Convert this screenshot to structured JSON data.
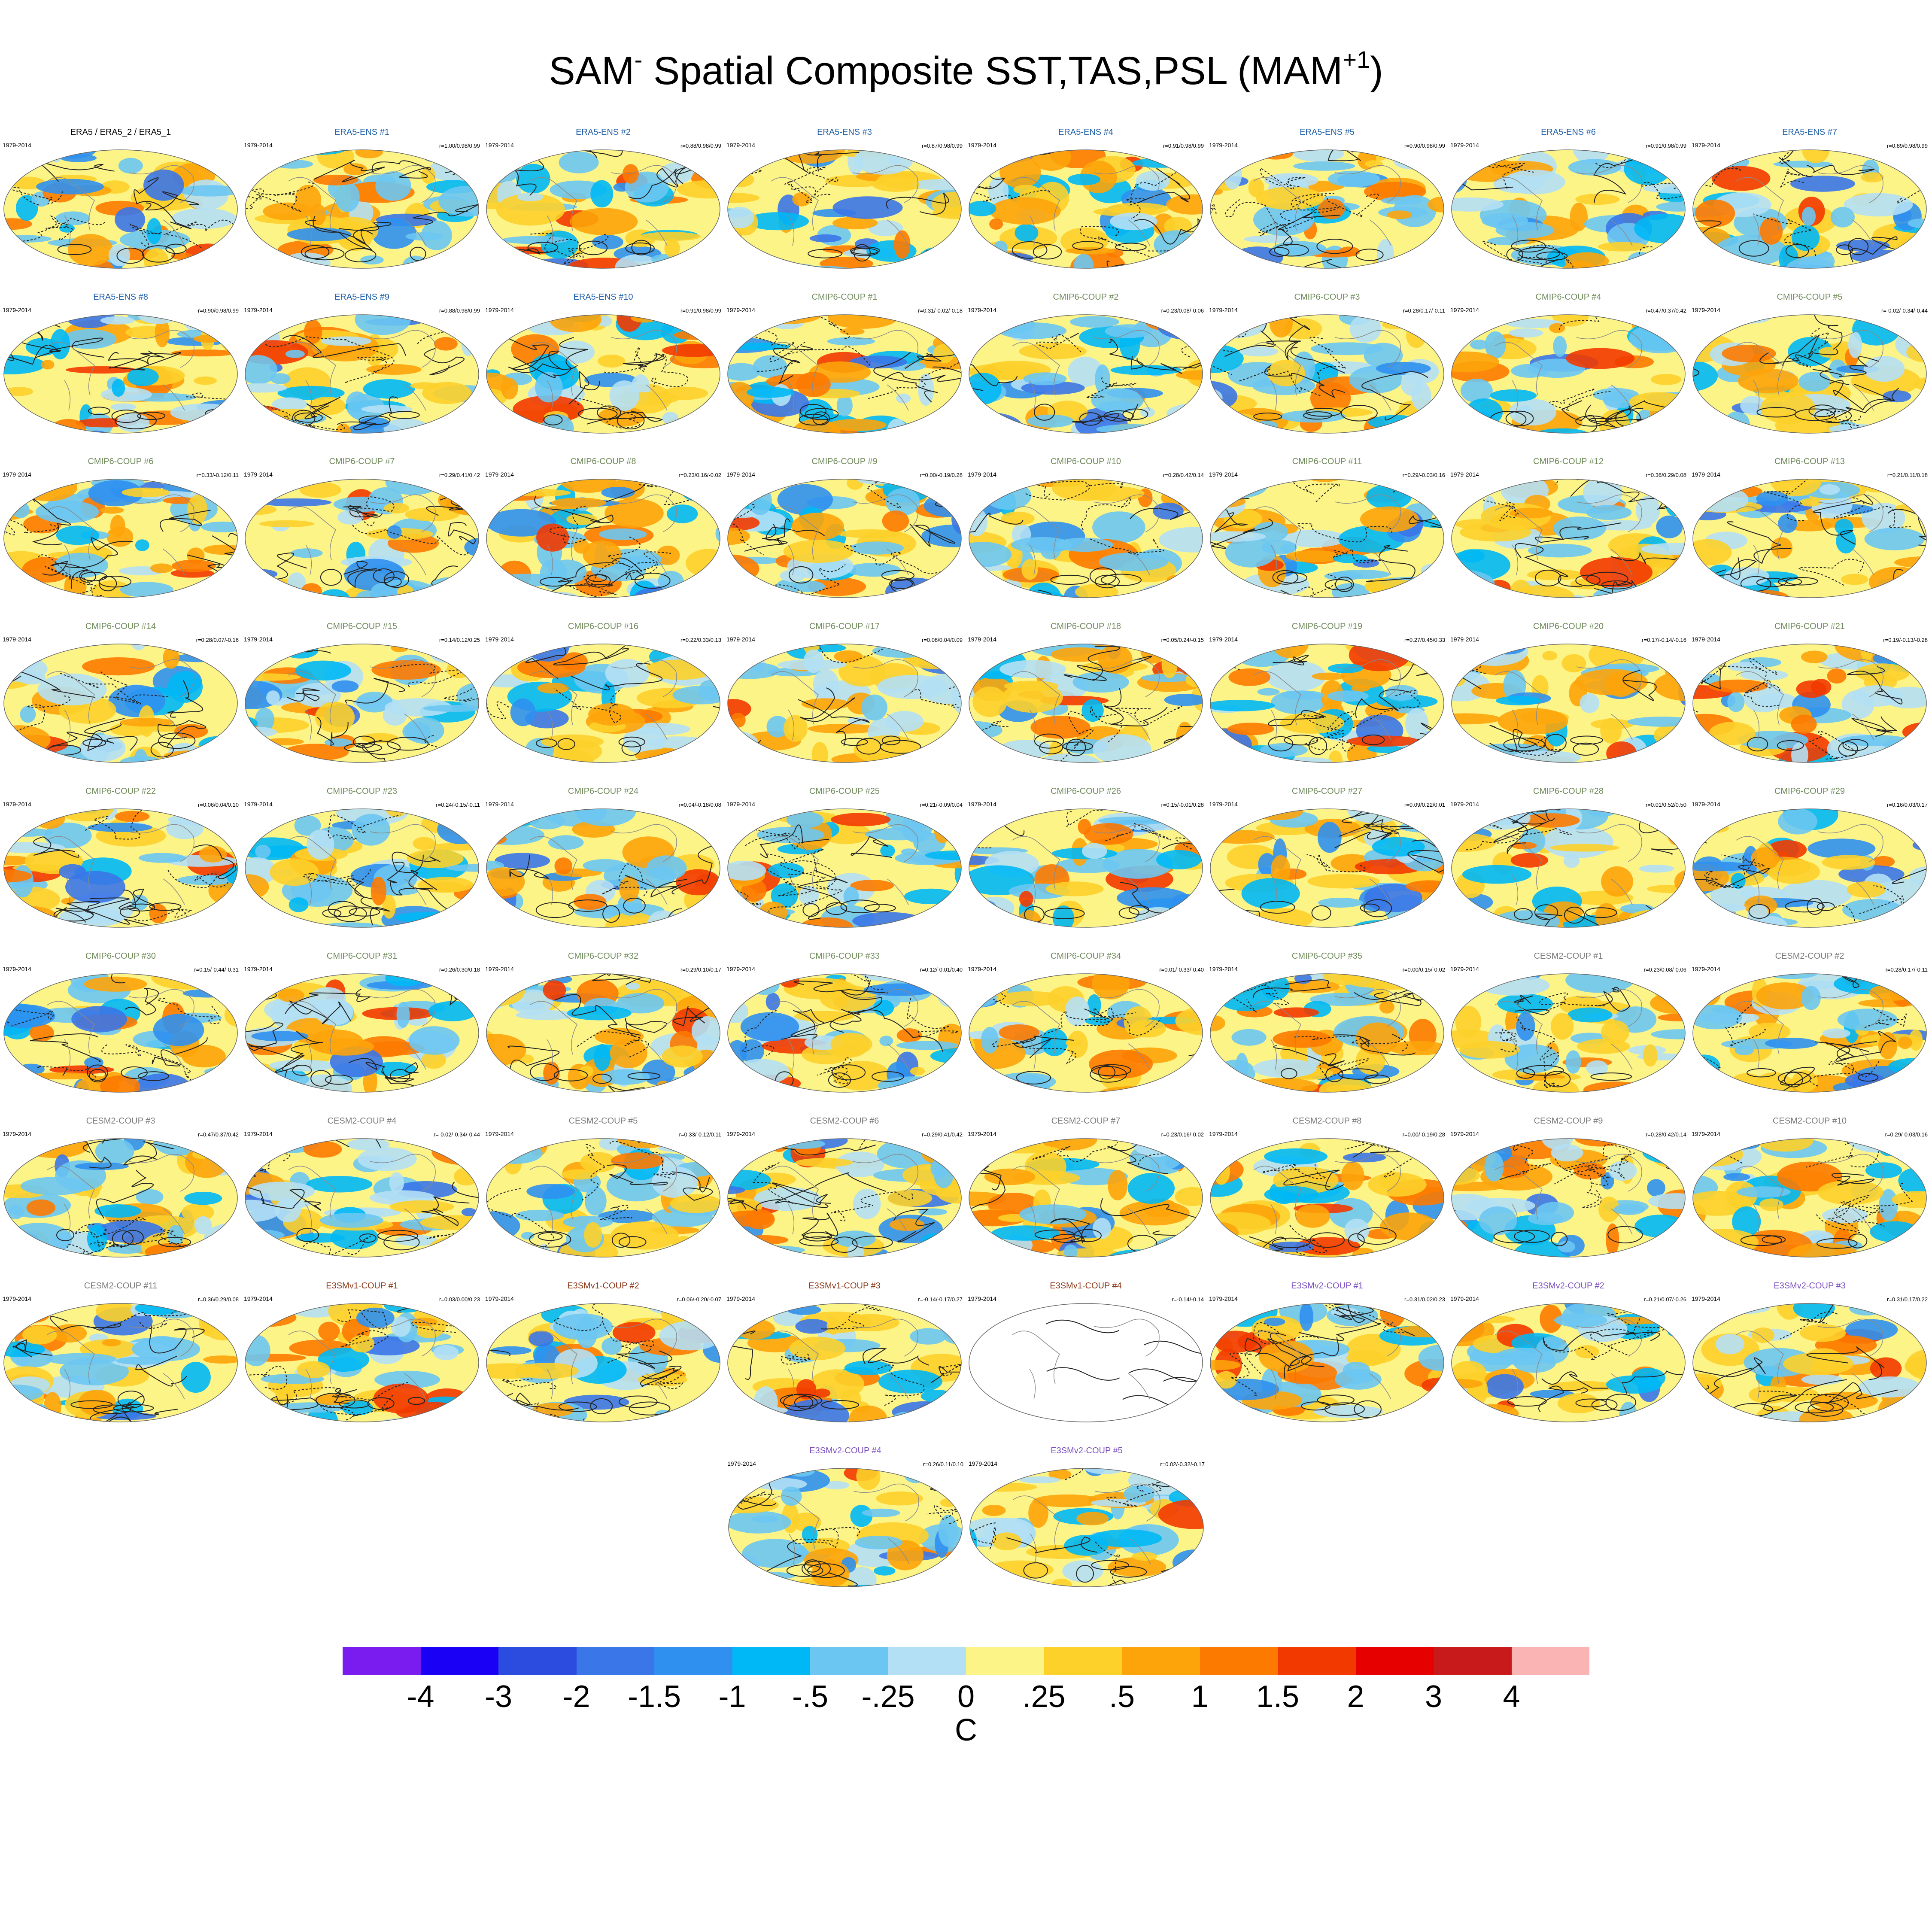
{
  "figure": {
    "title_base": "SAM",
    "title_sup": "-",
    "title_rest": " Spatial Composite SST,TAS,PSL (MAM",
    "title_sup2": "+1",
    "title_end": ")"
  },
  "panels": [
    {
      "title": "ERA5 / ERA5_2 / ERA5_1",
      "years": "1979-2014",
      "stats": "",
      "group": "obs",
      "blank": false
    },
    {
      "title": "ERA5-ENS   #1",
      "years": "1979-2014",
      "stats": "r=1.00/0.98/0.99",
      "group": "era5ens",
      "blank": false
    },
    {
      "title": "ERA5-ENS   #2",
      "years": "1979-2014",
      "stats": "r=0.88/0.98/0.99",
      "group": "era5ens",
      "blank": false
    },
    {
      "title": "ERA5-ENS   #3",
      "years": "1979-2014",
      "stats": "r=0.87/0.98/0.99",
      "group": "era5ens",
      "blank": false
    },
    {
      "title": "ERA5-ENS   #4",
      "years": "1979-2014",
      "stats": "r=0.91/0.98/0.99",
      "group": "era5ens",
      "blank": false
    },
    {
      "title": "ERA5-ENS   #5",
      "years": "1979-2014",
      "stats": "r=0.90/0.98/0.99",
      "group": "era5ens",
      "blank": false
    },
    {
      "title": "ERA5-ENS   #6",
      "years": "1979-2014",
      "stats": "r=0.91/0.98/0.99",
      "group": "era5ens",
      "blank": false
    },
    {
      "title": "ERA5-ENS   #7",
      "years": "1979-2014",
      "stats": "r=0.89/0.98/0.99",
      "group": "era5ens",
      "blank": false
    },
    {
      "title": "ERA5-ENS   #8",
      "years": "1979-2014",
      "stats": "r=0.90/0.98/0.99",
      "group": "era5ens",
      "blank": false
    },
    {
      "title": "ERA5-ENS   #9",
      "years": "1979-2014",
      "stats": "r=0.88/0.98/0.99",
      "group": "era5ens",
      "blank": false
    },
    {
      "title": "ERA5-ENS   #10",
      "years": "1979-2014",
      "stats": "r=0.91/0.98/0.99",
      "group": "era5ens",
      "blank": false
    },
    {
      "title": "CMIP6-COUP   #1",
      "years": "1979-2014",
      "stats": "r=0.31/-0.02/-0.18",
      "group": "cmip6",
      "blank": false
    },
    {
      "title": "CMIP6-COUP   #2",
      "years": "1979-2014",
      "stats": "r=0.23/0.08/-0.06",
      "group": "cmip6",
      "blank": false
    },
    {
      "title": "CMIP6-COUP   #3",
      "years": "1979-2014",
      "stats": "r=0.28/0.17/-0.11",
      "group": "cmip6",
      "blank": false
    },
    {
      "title": "CMIP6-COUP   #4",
      "years": "1979-2014",
      "stats": "r=0.47/0.37/0.42",
      "group": "cmip6",
      "blank": false
    },
    {
      "title": "CMIP6-COUP   #5",
      "years": "1979-2014",
      "stats": "r=-0.02/-0.34/-0.44",
      "group": "cmip6",
      "blank": false
    },
    {
      "title": "CMIP6-COUP   #6",
      "years": "1979-2014",
      "stats": "r=0.33/-0.12/0.11",
      "group": "cmip6",
      "blank": false
    },
    {
      "title": "CMIP6-COUP   #7",
      "years": "1979-2014",
      "stats": "r=0.29/0.41/0.42",
      "group": "cmip6",
      "blank": false
    },
    {
      "title": "CMIP6-COUP   #8",
      "years": "1979-2014",
      "stats": "r=0.23/0.16/-0.02",
      "group": "cmip6",
      "blank": false
    },
    {
      "title": "CMIP6-COUP   #9",
      "years": "1979-2014",
      "stats": "r=0.00/-0.19/0.28",
      "group": "cmip6",
      "blank": false
    },
    {
      "title": "CMIP6-COUP   #10",
      "years": "1979-2014",
      "stats": "r=0.28/0.42/0.14",
      "group": "cmip6",
      "blank": false
    },
    {
      "title": "CMIP6-COUP   #11",
      "years": "1979-2014",
      "stats": "r=0.29/-0.03/0.16",
      "group": "cmip6",
      "blank": false
    },
    {
      "title": "CMIP6-COUP   #12",
      "years": "1979-2014",
      "stats": "r=0.36/0.29/0.08",
      "group": "cmip6",
      "blank": false
    },
    {
      "title": "CMIP6-COUP   #13",
      "years": "1979-2014",
      "stats": "r=0.21/0.11/0.18",
      "group": "cmip6",
      "blank": false
    },
    {
      "title": "CMIP6-COUP   #14",
      "years": "1979-2014",
      "stats": "r=0.28/0.07/-0.16",
      "group": "cmip6",
      "blank": false
    },
    {
      "title": "CMIP6-COUP   #15",
      "years": "1979-2014",
      "stats": "r=0.14/0.12/0.25",
      "group": "cmip6",
      "blank": false
    },
    {
      "title": "CMIP6-COUP   #16",
      "years": "1979-2014",
      "stats": "r=0.22/0.33/0.13",
      "group": "cmip6",
      "blank": false
    },
    {
      "title": "CMIP6-COUP   #17",
      "years": "1979-2014",
      "stats": "r=0.08/0.04/0.09",
      "group": "cmip6",
      "blank": false
    },
    {
      "title": "CMIP6-COUP   #18",
      "years": "1979-2014",
      "stats": "r=0.05/0.24/-0.15",
      "group": "cmip6",
      "blank": false
    },
    {
      "title": "CMIP6-COUP   #19",
      "years": "1979-2014",
      "stats": "r=0.27/0.45/0.33",
      "group": "cmip6",
      "blank": false
    },
    {
      "title": "CMIP6-COUP   #20",
      "years": "1979-2014",
      "stats": "r=0.17/-0.14/-0.16",
      "group": "cmip6",
      "blank": false
    },
    {
      "title": "CMIP6-COUP   #21",
      "years": "1979-2014",
      "stats": "r=0.19/-0.13/-0.28",
      "group": "cmip6",
      "blank": false
    },
    {
      "title": "CMIP6-COUP   #22",
      "years": "1979-2014",
      "stats": "r=0.06/0.04/0.10",
      "group": "cmip6",
      "blank": false
    },
    {
      "title": "CMIP6-COUP   #23",
      "years": "1979-2014",
      "stats": "r=0.24/-0.15/-0.11",
      "group": "cmip6",
      "blank": false
    },
    {
      "title": "CMIP6-COUP   #24",
      "years": "1979-2014",
      "stats": "r=0.04/-0.18/0.08",
      "group": "cmip6",
      "blank": false
    },
    {
      "title": "CMIP6-COUP   #25",
      "years": "1979-2014",
      "stats": "r=0.21/-0.09/0.04",
      "group": "cmip6",
      "blank": false
    },
    {
      "title": "CMIP6-COUP   #26",
      "years": "1979-2014",
      "stats": "r=0.15/-0.01/0.28",
      "group": "cmip6",
      "blank": false
    },
    {
      "title": "CMIP6-COUP   #27",
      "years": "1979-2014",
      "stats": "r=0.09/0.22/0.01",
      "group": "cmip6",
      "blank": false
    },
    {
      "title": "CMIP6-COUP   #28",
      "years": "1979-2014",
      "stats": "r=0.01/0.52/0.50",
      "group": "cmip6",
      "blank": false
    },
    {
      "title": "CMIP6-COUP   #29",
      "years": "1979-2014",
      "stats": "r=0.16/0.03/0.17",
      "group": "cmip6",
      "blank": false
    },
    {
      "title": "CMIP6-COUP   #30",
      "years": "1979-2014",
      "stats": "r=0.15/-0.44/-0.31",
      "group": "cmip6",
      "blank": false
    },
    {
      "title": "CMIP6-COUP   #31",
      "years": "1979-2014",
      "stats": "r=0.26/0.30/0.18",
      "group": "cmip6",
      "blank": false
    },
    {
      "title": "CMIP6-COUP   #32",
      "years": "1979-2014",
      "stats": "r=0.29/0.10/0.17",
      "group": "cmip6",
      "blank": false
    },
    {
      "title": "CMIP6-COUP   #33",
      "years": "1979-2014",
      "stats": "r=0.12/-0.01/0.40",
      "group": "cmip6",
      "blank": false
    },
    {
      "title": "CMIP6-COUP   #34",
      "years": "1979-2014",
      "stats": "r=0.01/-0.33/-0.40",
      "group": "cmip6",
      "blank": false
    },
    {
      "title": "CMIP6-COUP   #35",
      "years": "1979-2014",
      "stats": "r=0.00/0.15/-0.02",
      "group": "cmip6",
      "blank": false
    },
    {
      "title": "CESM2-COUP   #1",
      "years": "1979-2014",
      "stats": "r=0.23/0.08/-0.06",
      "group": "cesm2",
      "blank": false
    },
    {
      "title": "CESM2-COUP   #2",
      "years": "1979-2014",
      "stats": "r=0.28/0.17/-0.11",
      "group": "cesm2",
      "blank": false
    },
    {
      "title": "CESM2-COUP   #3",
      "years": "1979-2014",
      "stats": "r=0.47/0.37/0.42",
      "group": "cesm2",
      "blank": false
    },
    {
      "title": "CESM2-COUP   #4",
      "years": "1979-2014",
      "stats": "r=-0.02/-0.34/-0.44",
      "group": "cesm2",
      "blank": false
    },
    {
      "title": "CESM2-COUP   #5",
      "years": "1979-2014",
      "stats": "r=0.33/-0.12/0.11",
      "group": "cesm2",
      "blank": false
    },
    {
      "title": "CESM2-COUP   #6",
      "years": "1979-2014",
      "stats": "r=0.29/0.41/0.42",
      "group": "cesm2",
      "blank": false
    },
    {
      "title": "CESM2-COUP   #7",
      "years": "1979-2014",
      "stats": "r=0.23/0.16/-0.02",
      "group": "cesm2",
      "blank": false
    },
    {
      "title": "CESM2-COUP   #8",
      "years": "1979-2014",
      "stats": "r=0.00/-0.19/0.28",
      "group": "cesm2",
      "blank": false
    },
    {
      "title": "CESM2-COUP   #9",
      "years": "1979-2014",
      "stats": "r=0.28/0.42/0.14",
      "group": "cesm2",
      "blank": false
    },
    {
      "title": "CESM2-COUP   #10",
      "years": "1979-2014",
      "stats": "r=0.29/-0.03/0.16",
      "group": "cesm2",
      "blank": false
    },
    {
      "title": "CESM2-COUP   #11",
      "years": "1979-2014",
      "stats": "r=0.36/0.29/0.08",
      "group": "cesm2",
      "blank": false
    },
    {
      "title": "E3SMv1-COUP #1",
      "years": "1979-2014",
      "stats": "r=0.03/0.00/0.23",
      "group": "e3smv1",
      "blank": false
    },
    {
      "title": "E3SMv1-COUP #2",
      "years": "1979-2014",
      "stats": "r=0.06/-0.20/-0.07",
      "group": "e3smv1",
      "blank": false
    },
    {
      "title": "E3SMv1-COUP #3",
      "years": "1979-2014",
      "stats": "r=-0.14/-0.17/0.27",
      "group": "e3smv1",
      "blank": false
    },
    {
      "title": "E3SMv1-COUP #4",
      "years": "1979-2014",
      "stats": "r=-0.14/-0.14",
      "group": "e3smv1",
      "blank": true
    },
    {
      "title": "E3SMv2-COUP #1",
      "years": "1979-2014",
      "stats": "r=0.31/0.02/0.23",
      "group": "e3smv2",
      "blank": false
    },
    {
      "title": "E3SMv2-COUP #2",
      "years": "1979-2014",
      "stats": "r=0.21/0.07/-0.26",
      "group": "e3smv2",
      "blank": false
    },
    {
      "title": "E3SMv2-COUP #3",
      "years": "1979-2014",
      "stats": "r=0.31/0.17/0.22",
      "group": "e3smv2",
      "blank": false
    },
    {
      "title": "E3SMv2-COUP #4",
      "years": "1979-2014",
      "stats": "r=0.26/0.11/0.10",
      "group": "e3smv2",
      "blank": false
    },
    {
      "title": "E3SMv2-COUP #5",
      "years": "1979-2014",
      "stats": "r=0.02/-0.32/-0.17",
      "group": "e3smv2",
      "blank": false
    }
  ],
  "group_colors": {
    "obs": "#000000",
    "era5ens": "#1f5fa8",
    "cmip6": "#6f8a5a",
    "cesm2": "#7a7a7a",
    "e3smv1": "#8b3a1a",
    "e3smv2": "#7b4fc0"
  },
  "colorbar": {
    "colors": [
      "#7a1cf0",
      "#1a00f5",
      "#2c4ce0",
      "#3a76e8",
      "#2f90f0",
      "#00b8f5",
      "#6cc6f2",
      "#b4e0f5",
      "#fdf488",
      "#fdd02a",
      "#fda40a",
      "#fd7a00",
      "#f23a00",
      "#e60000",
      "#c81a1a",
      "#fbb4b4"
    ],
    "ticks": [
      "-4",
      "-3",
      "-2",
      "-1.5",
      "-1",
      "-.5",
      "-.25",
      "0",
      ".25",
      ".5",
      "1",
      "1.5",
      "2",
      "3",
      "4"
    ],
    "units": "C"
  }
}
